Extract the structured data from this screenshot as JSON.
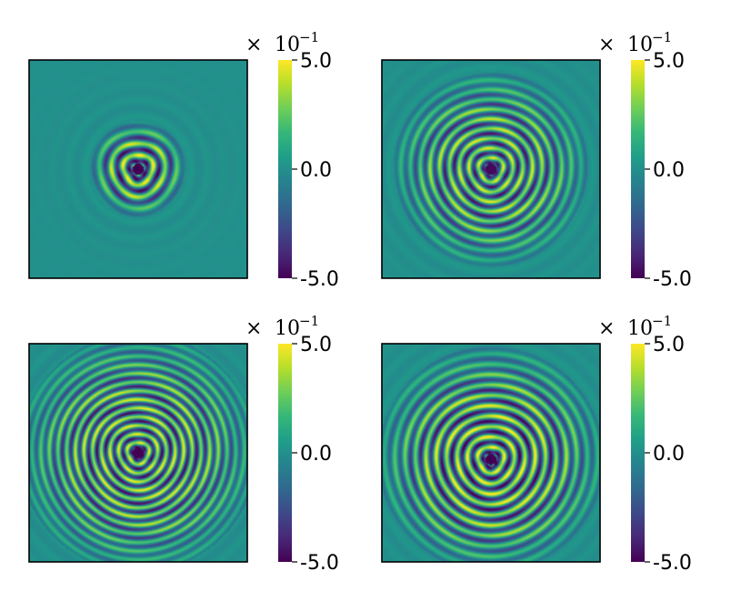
{
  "chart_data": [
    {
      "type": "heatmap",
      "panel": "top-left",
      "colormap": "viridis",
      "color_range": [
        -0.5,
        0.5
      ],
      "colorbar": {
        "multiplier_sign": "×",
        "multiplier_base": "10",
        "multiplier_exponent": "−1",
        "tick_labels": [
          "5.0",
          "0.0",
          "-5.0"
        ],
        "tick_values": [
          5.0,
          0.0,
          -5.0
        ]
      },
      "pattern": {
        "description": "small concentric ring pattern centered near middle",
        "ring_count": 3,
        "ring_spacing": 0.055,
        "max_radius": 0.22,
        "amplitude": 0.45,
        "center": [
          0.5,
          0.5
        ]
      }
    },
    {
      "type": "heatmap",
      "panel": "top-right",
      "colormap": "viridis",
      "color_range": [
        -0.5,
        0.5
      ],
      "colorbar": {
        "multiplier_sign": "×",
        "multiplier_base": "10",
        "multiplier_exponent": "−1",
        "tick_labels": [
          "5.0",
          "0.0",
          "-5.0"
        ],
        "tick_values": [
          5.0,
          0.0,
          -5.0
        ]
      },
      "pattern": {
        "description": "concentric rings expanding to mid radius",
        "ring_count": 8,
        "ring_spacing": 0.045,
        "max_radius": 0.45,
        "amplitude": 0.4,
        "center": [
          0.5,
          0.5
        ]
      }
    },
    {
      "type": "heatmap",
      "panel": "bottom-left",
      "colormap": "viridis",
      "color_range": [
        -0.5,
        0.5
      ],
      "colorbar": {
        "multiplier_sign": "×",
        "multiplier_base": "10",
        "multiplier_exponent": "−1",
        "tick_labels": [
          "5.0",
          "0.0",
          "-5.0"
        ],
        "tick_values": [
          5.0,
          0.0,
          -5.0
        ]
      },
      "pattern": {
        "description": "many concentric rings filling the panel",
        "ring_count": 12,
        "ring_spacing": 0.04,
        "max_radius": 0.55,
        "amplitude": 0.42,
        "center": [
          0.5,
          0.5
        ]
      }
    },
    {
      "type": "heatmap",
      "panel": "bottom-right",
      "colormap": "viridis",
      "color_range": [
        -0.5,
        0.5
      ],
      "colorbar": {
        "multiplier_sign": "×",
        "multiplier_base": "10",
        "multiplier_exponent": "−1",
        "tick_labels": [
          "5.0",
          "0.0",
          "-5.0"
        ],
        "tick_values": [
          5.0,
          0.0,
          -5.0
        ]
      },
      "pattern": {
        "description": "concentric rings with strong outer ring",
        "ring_count": 10,
        "ring_spacing": 0.048,
        "max_radius": 0.52,
        "amplitude": 0.45,
        "center": [
          0.5,
          0.53
        ]
      }
    }
  ],
  "colors": {
    "background": "#ffffff",
    "frame": "#000000",
    "viridis": [
      "#440154",
      "#482878",
      "#3e4989",
      "#31688e",
      "#26828e",
      "#1f9e89",
      "#35b779",
      "#6ece58",
      "#b5de2b",
      "#fde725"
    ]
  }
}
